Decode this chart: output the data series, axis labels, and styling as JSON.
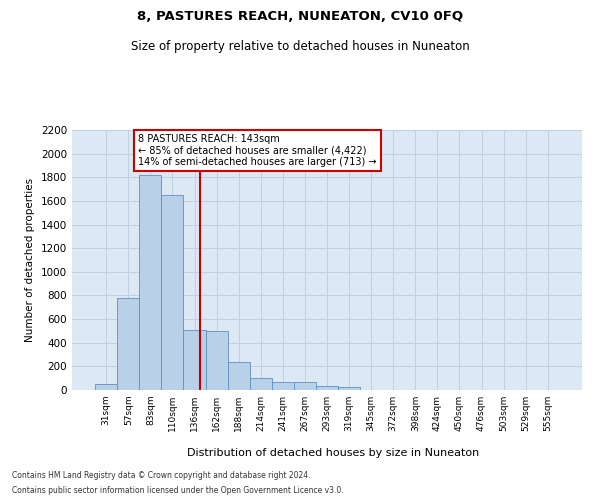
{
  "title": "8, PASTURES REACH, NUNEATON, CV10 0FQ",
  "subtitle": "Size of property relative to detached houses in Nuneaton",
  "xlabel": "Distribution of detached houses by size in Nuneaton",
  "ylabel": "Number of detached properties",
  "categories": [
    "31sqm",
    "57sqm",
    "83sqm",
    "110sqm",
    "136sqm",
    "162sqm",
    "188sqm",
    "214sqm",
    "241sqm",
    "267sqm",
    "293sqm",
    "319sqm",
    "345sqm",
    "372sqm",
    "398sqm",
    "424sqm",
    "450sqm",
    "476sqm",
    "503sqm",
    "529sqm",
    "555sqm"
  ],
  "values": [
    50,
    780,
    1820,
    1650,
    510,
    500,
    240,
    100,
    65,
    65,
    30,
    25,
    0,
    0,
    0,
    0,
    0,
    0,
    0,
    0,
    0
  ],
  "bar_color": "#b8d0e8",
  "bar_edge_color": "#6090c0",
  "bar_linewidth": 0.6,
  "grid_color": "#c0d0e0",
  "bg_color": "#dce8f4",
  "annotation_line1": "8 PASTURES REACH: 143sqm",
  "annotation_line2": "← 85% of detached houses are smaller (4,422)",
  "annotation_line3": "14% of semi-detached houses are larger (713) →",
  "annotation_box_color": "white",
  "annotation_box_edge": "#cc0000",
  "vline_color": "#cc0000",
  "ylim": [
    0,
    2200
  ],
  "yticks": [
    0,
    200,
    400,
    600,
    800,
    1000,
    1200,
    1400,
    1600,
    1800,
    2000,
    2200
  ],
  "footnote_line1": "Contains HM Land Registry data © Crown copyright and database right 2024.",
  "footnote_line2": "Contains public sector information licensed under the Open Government Licence v3.0."
}
